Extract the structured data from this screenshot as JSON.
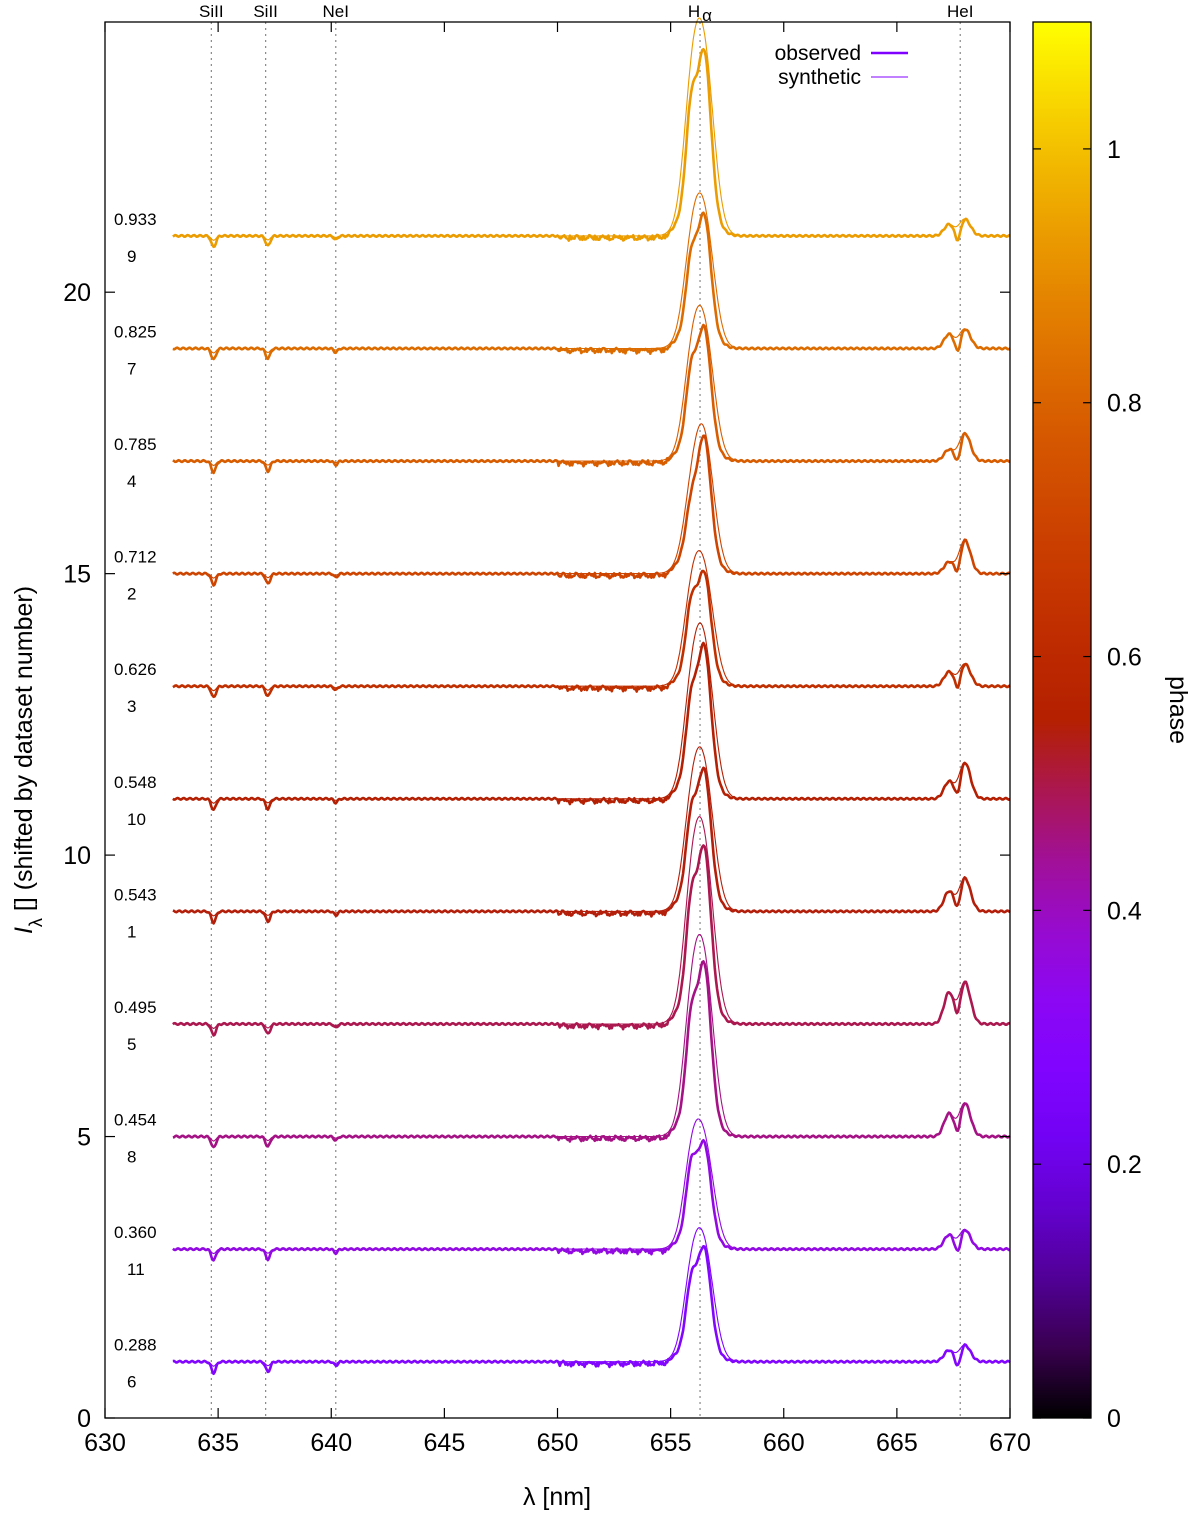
{
  "chart_data": {
    "type": "line",
    "xlabel": "λ [nm]",
    "ylabel": "I_λ [] (shifted by dataset number)",
    "xlim": [
      630,
      670
    ],
    "ylim": [
      0,
      24.8
    ],
    "x_ticks": [
      630,
      635,
      640,
      645,
      650,
      655,
      660,
      665,
      670
    ],
    "y_ticks": [
      0,
      5,
      10,
      15,
      20
    ],
    "legend": {
      "position": "top-right",
      "entries": [
        {
          "label": "observed",
          "style": "thick",
          "color": "#8000ff"
        },
        {
          "label": "synthetic",
          "style": "thin",
          "color": "#8000ff"
        }
      ]
    },
    "line_markers": [
      {
        "name": "SiII",
        "sub": "",
        "x": 634.7
      },
      {
        "name": "SiII",
        "sub": "",
        "x": 637.1
      },
      {
        "name": "NeI",
        "sub": "",
        "x": 640.2
      },
      {
        "name": "H",
        "sub": "α",
        "x": 656.3
      },
      {
        "name": "HeI",
        "sub": "",
        "x": 667.8
      }
    ],
    "colorbar": {
      "label": "phase",
      "range": [
        0,
        1.1
      ],
      "ticks": [
        0,
        0.2,
        0.4,
        0.6,
        0.8,
        1
      ]
    },
    "series": [
      {
        "dataset": "6",
        "phase": "0.288",
        "offset": 1,
        "peak": 1.45,
        "blue_peak": 0.85,
        "heI": [
          0.2,
          0.3
        ]
      },
      {
        "dataset": "11",
        "phase": "0.360",
        "offset": 3,
        "peak": 1.35,
        "blue_peak": 0.95,
        "heI": [
          0.25,
          0.35
        ]
      },
      {
        "dataset": "8",
        "phase": "0.454",
        "offset": 5,
        "peak": 2.2,
        "blue_peak": 1.25,
        "heI": [
          0.4,
          0.6
        ]
      },
      {
        "dataset": "5",
        "phase": "0.495",
        "offset": 7,
        "peak": 2.25,
        "blue_peak": 1.3,
        "heI": [
          0.55,
          0.75
        ]
      },
      {
        "dataset": "1",
        "phase": "0.543",
        "offset": 9,
        "peak": 1.8,
        "blue_peak": 1.0,
        "heI": [
          0.35,
          0.6
        ]
      },
      {
        "dataset": "10",
        "phase": "0.548",
        "offset": 11,
        "peak": 1.95,
        "blue_peak": 1.0,
        "heI": [
          0.3,
          0.65
        ]
      },
      {
        "dataset": "3",
        "phase": "0.626",
        "offset": 13,
        "peak": 1.45,
        "blue_peak": 0.9,
        "heI": [
          0.25,
          0.4
        ]
      },
      {
        "dataset": "2",
        "phase": "0.712",
        "offset": 15,
        "peak": 1.75,
        "blue_peak": 0.6,
        "heI": [
          0.2,
          0.6
        ]
      },
      {
        "dataset": "4",
        "phase": "0.785",
        "offset": 17,
        "peak": 1.7,
        "blue_peak": 0.95,
        "heI": [
          0.2,
          0.5
        ]
      },
      {
        "dataset": "7",
        "phase": "0.825",
        "offset": 19,
        "peak": 1.7,
        "blue_peak": 0.95,
        "heI": [
          0.25,
          0.35
        ]
      },
      {
        "dataset": "9",
        "phase": "0.933",
        "offset": 21,
        "peak": 2.35,
        "blue_peak": 1.4,
        "heI": [
          0.2,
          0.3
        ]
      }
    ]
  }
}
